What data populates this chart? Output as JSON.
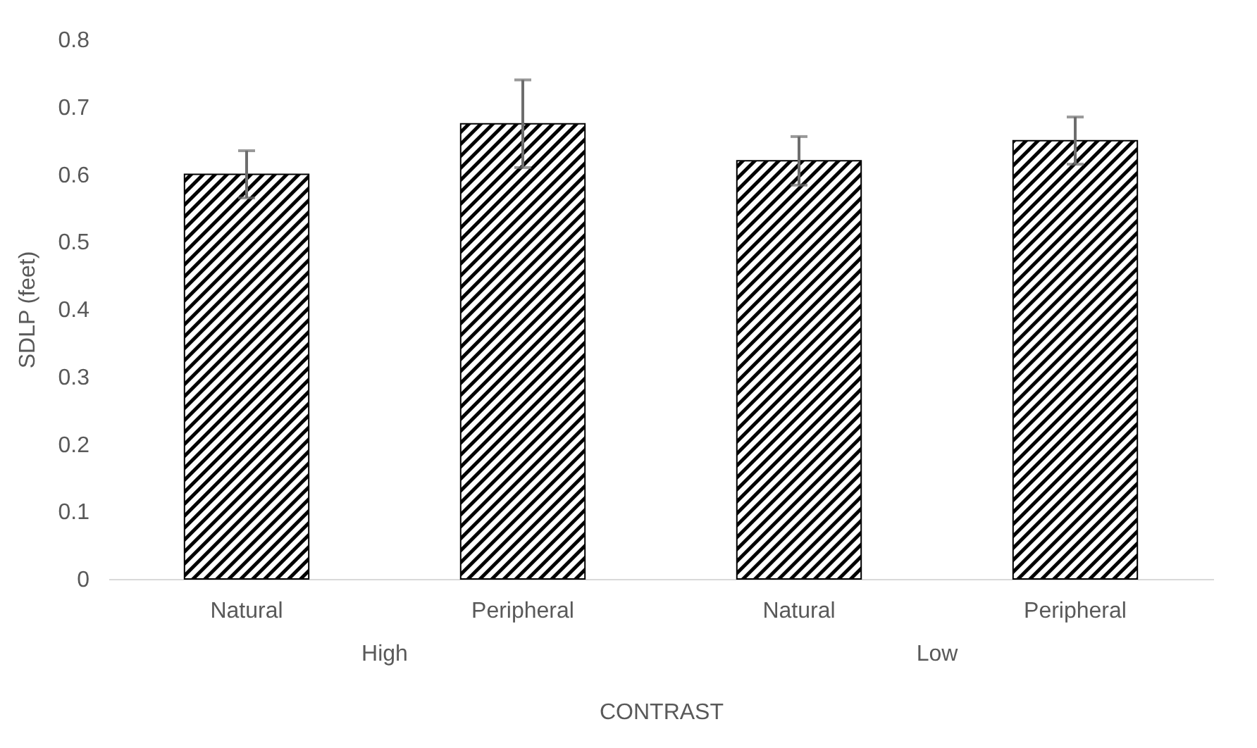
{
  "chart_data": {
    "type": "bar",
    "xlabel": "CONTRAST",
    "ylabel": "SDLP (feet)",
    "categories": [
      "Natural",
      "Peripheral",
      "Natural",
      "Peripheral"
    ],
    "values": [
      0.6,
      0.675,
      0.62,
      0.65
    ],
    "errors": [
      0.035,
      0.065,
      0.036,
      0.035
    ],
    "color": "#000000",
    "annotations": [
      "High",
      "Low"
    ],
    "ylim": [
      0,
      0.8
    ],
    "yticks": [
      0,
      0.1,
      0.2,
      0.3,
      0.4,
      0.5,
      0.6,
      0.7,
      0.8
    ],
    "grid": false
  }
}
